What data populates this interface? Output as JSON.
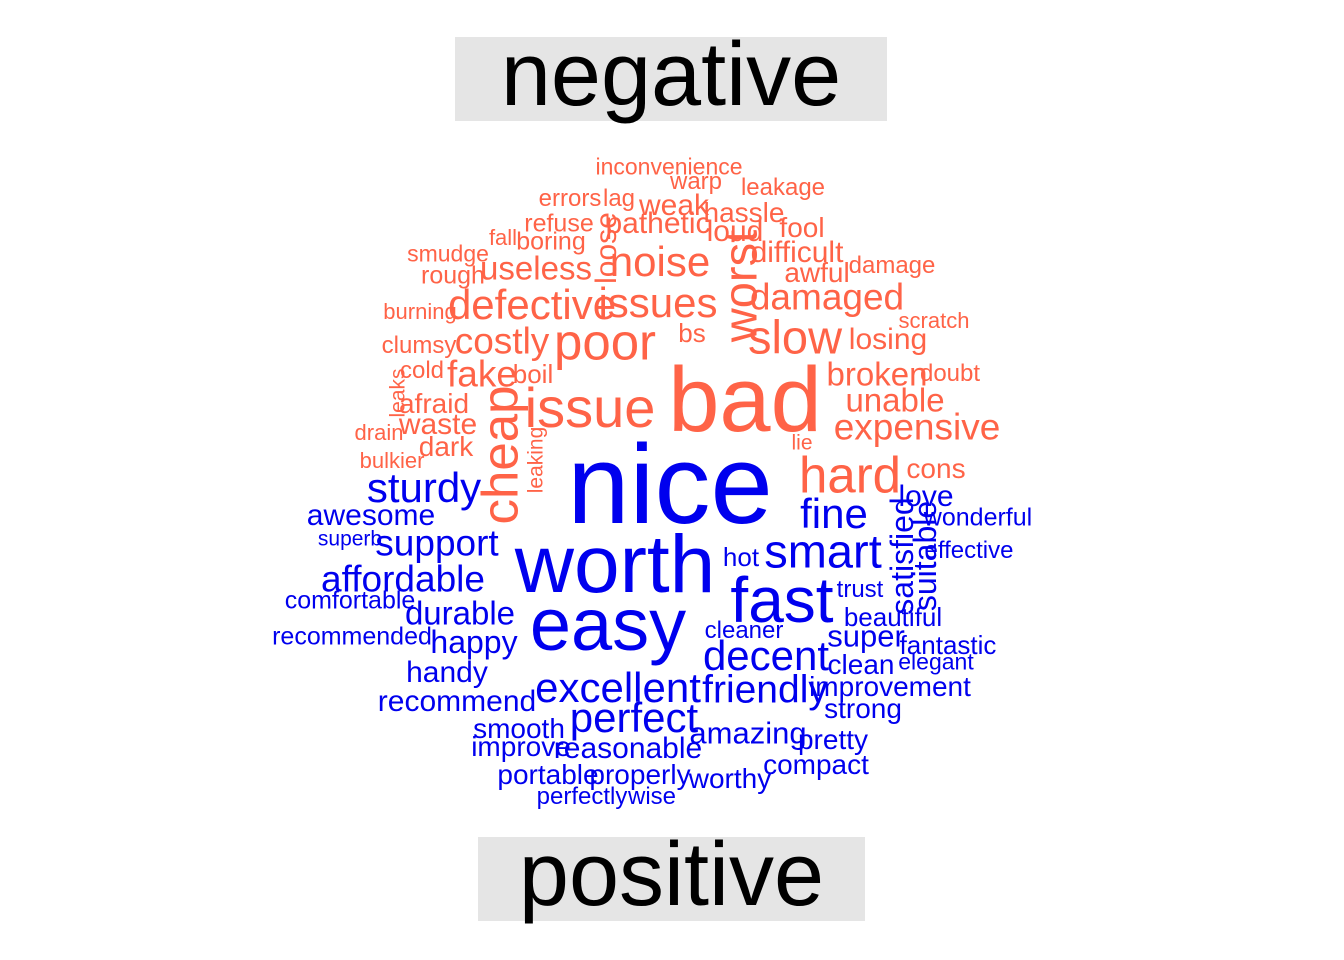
{
  "chart_data": {
    "type": "wordcloud",
    "groups": [
      {
        "label": "negative",
        "color": "#ff6347",
        "words": [
          {
            "text": "bad",
            "size": 10,
            "rotated": false
          },
          {
            "text": "issue",
            "size": 6,
            "rotated": false
          },
          {
            "text": "poor",
            "size": 5.5,
            "rotated": false
          },
          {
            "text": "cheap",
            "size": 5.5,
            "rotated": true
          },
          {
            "text": "hard",
            "size": 5.5,
            "rotated": false
          },
          {
            "text": "worst",
            "size": 5,
            "rotated": true
          },
          {
            "text": "slow",
            "size": 5,
            "rotated": false
          },
          {
            "text": "issues",
            "size": 4.5,
            "rotated": false
          },
          {
            "text": "noise",
            "size": 4.5,
            "rotated": false
          },
          {
            "text": "defective",
            "size": 4.5,
            "rotated": false
          },
          {
            "text": "costly",
            "size": 4,
            "rotated": false
          },
          {
            "text": "fake",
            "size": 4,
            "rotated": false
          },
          {
            "text": "damaged",
            "size": 4,
            "rotated": false
          },
          {
            "text": "expensive",
            "size": 4,
            "rotated": false
          },
          {
            "text": "useless",
            "size": 3.5,
            "rotated": false
          },
          {
            "text": "broken",
            "size": 3.5,
            "rotated": false
          },
          {
            "text": "unable",
            "size": 3.5,
            "rotated": false
          },
          {
            "text": "losing",
            "size": 3.2,
            "rotated": false
          },
          {
            "text": "pathetic",
            "size": 3.2,
            "rotated": false
          },
          {
            "text": "weak",
            "size": 3.2,
            "rotated": false
          },
          {
            "text": "loud",
            "size": 3.2,
            "rotated": false
          },
          {
            "text": "difficult",
            "size": 3.2,
            "rotated": false
          },
          {
            "text": "loose",
            "size": 3.2,
            "rotated": true
          },
          {
            "text": "waste",
            "size": 3.2,
            "rotated": false
          },
          {
            "text": "hassle",
            "size": 3,
            "rotated": false
          },
          {
            "text": "fool",
            "size": 3,
            "rotated": false
          },
          {
            "text": "awful",
            "size": 3,
            "rotated": false
          },
          {
            "text": "dark",
            "size": 3,
            "rotated": false
          },
          {
            "text": "afraid",
            "size": 3,
            "rotated": false
          },
          {
            "text": "cons",
            "size": 3,
            "rotated": false
          },
          {
            "text": "boil",
            "size": 2.8,
            "rotated": false
          },
          {
            "text": "bs",
            "size": 2.8,
            "rotated": false
          },
          {
            "text": "refuse",
            "size": 2.7,
            "rotated": false
          },
          {
            "text": "boring",
            "size": 2.7,
            "rotated": false
          },
          {
            "text": "rough",
            "size": 2.7,
            "rotated": false
          },
          {
            "text": "clumsy",
            "size": 2.6,
            "rotated": false
          },
          {
            "text": "cold",
            "size": 2.6,
            "rotated": false
          },
          {
            "text": "doubt",
            "size": 2.6,
            "rotated": false
          },
          {
            "text": "damage",
            "size": 2.6,
            "rotated": false
          },
          {
            "text": "leakage",
            "size": 2.6,
            "rotated": false
          },
          {
            "text": "warp",
            "size": 2.6,
            "rotated": false
          },
          {
            "text": "errors",
            "size": 2.6,
            "rotated": false
          },
          {
            "text": "lag",
            "size": 2.6,
            "rotated": false
          },
          {
            "text": "inconvenience",
            "size": 2.5,
            "rotated": false
          },
          {
            "text": "smudge",
            "size": 2.5,
            "rotated": false
          },
          {
            "text": "fall",
            "size": 2.4,
            "rotated": false
          },
          {
            "text": "burning",
            "size": 2.4,
            "rotated": false
          },
          {
            "text": "scratch",
            "size": 2.4,
            "rotated": false
          },
          {
            "text": "drain",
            "size": 2.4,
            "rotated": false
          },
          {
            "text": "bulkier",
            "size": 2.4,
            "rotated": false
          },
          {
            "text": "leaks",
            "size": 2.3,
            "rotated": true
          },
          {
            "text": "leaking",
            "size": 2.3,
            "rotated": true
          },
          {
            "text": "lie",
            "size": 2.3,
            "rotated": false
          }
        ]
      },
      {
        "label": "positive",
        "color": "#0000ee",
        "words": [
          {
            "text": "nice",
            "size": 12,
            "rotated": false
          },
          {
            "text": "worth",
            "size": 9,
            "rotated": false
          },
          {
            "text": "easy",
            "size": 8,
            "rotated": false
          },
          {
            "text": "fast",
            "size": 7,
            "rotated": false
          },
          {
            "text": "smart",
            "size": 5,
            "rotated": false
          },
          {
            "text": "decent",
            "size": 4.5,
            "rotated": false
          },
          {
            "text": "excellent",
            "size": 4.5,
            "rotated": false
          },
          {
            "text": "perfect",
            "size": 4.5,
            "rotated": false
          },
          {
            "text": "fine",
            "size": 4.5,
            "rotated": false
          },
          {
            "text": "sturdy",
            "size": 4.5,
            "rotated": false
          },
          {
            "text": "friendly",
            "size": 4.2,
            "rotated": false
          },
          {
            "text": "affordable",
            "size": 4,
            "rotated": false
          },
          {
            "text": "support",
            "size": 4,
            "rotated": false
          },
          {
            "text": "durable",
            "size": 3.6,
            "rotated": false
          },
          {
            "text": "satisfied",
            "size": 3.4,
            "rotated": true
          },
          {
            "text": "suitable",
            "size": 3.4,
            "rotated": true
          },
          {
            "text": "happy",
            "size": 3.4,
            "rotated": false
          },
          {
            "text": "amazing",
            "size": 3.3,
            "rotated": false
          },
          {
            "text": "super",
            "size": 3.3,
            "rotated": false
          },
          {
            "text": "awesome",
            "size": 3.2,
            "rotated": false
          },
          {
            "text": "handy",
            "size": 3.2,
            "rotated": false
          },
          {
            "text": "recommend",
            "size": 3.2,
            "rotated": false
          },
          {
            "text": "reasonable",
            "size": 3.2,
            "rotated": false
          },
          {
            "text": "love",
            "size": 3.2,
            "rotated": false
          },
          {
            "text": "clean",
            "size": 3,
            "rotated": false
          },
          {
            "text": "smooth",
            "size": 3,
            "rotated": false
          },
          {
            "text": "improve",
            "size": 3,
            "rotated": false
          },
          {
            "text": "portable",
            "size": 3,
            "rotated": false
          },
          {
            "text": "properly",
            "size": 3,
            "rotated": false
          },
          {
            "text": "worthy",
            "size": 3,
            "rotated": false
          },
          {
            "text": "compact",
            "size": 3,
            "rotated": false
          },
          {
            "text": "improvement",
            "size": 3,
            "rotated": false
          },
          {
            "text": "strong",
            "size": 3,
            "rotated": false
          },
          {
            "text": "pretty",
            "size": 3,
            "rotated": false
          },
          {
            "text": "hot",
            "size": 2.8,
            "rotated": false
          },
          {
            "text": "beautiful",
            "size": 2.8,
            "rotated": false
          },
          {
            "text": "fantastic",
            "size": 2.8,
            "rotated": false
          },
          {
            "text": "comfortable",
            "size": 2.7,
            "rotated": false
          },
          {
            "text": "recommended",
            "size": 2.7,
            "rotated": false
          },
          {
            "text": "wonderful",
            "size": 2.7,
            "rotated": false
          },
          {
            "text": "effective",
            "size": 2.6,
            "rotated": false
          },
          {
            "text": "trust",
            "size": 2.6,
            "rotated": false
          },
          {
            "text": "cleaner",
            "size": 2.6,
            "rotated": false
          },
          {
            "text": "elegant",
            "size": 2.5,
            "rotated": false
          },
          {
            "text": "perfectly",
            "size": 2.6,
            "rotated": false
          },
          {
            "text": "wise",
            "size": 2.6,
            "rotated": false
          },
          {
            "text": "superb",
            "size": 2.3,
            "rotated": false
          }
        ]
      }
    ]
  }
}
